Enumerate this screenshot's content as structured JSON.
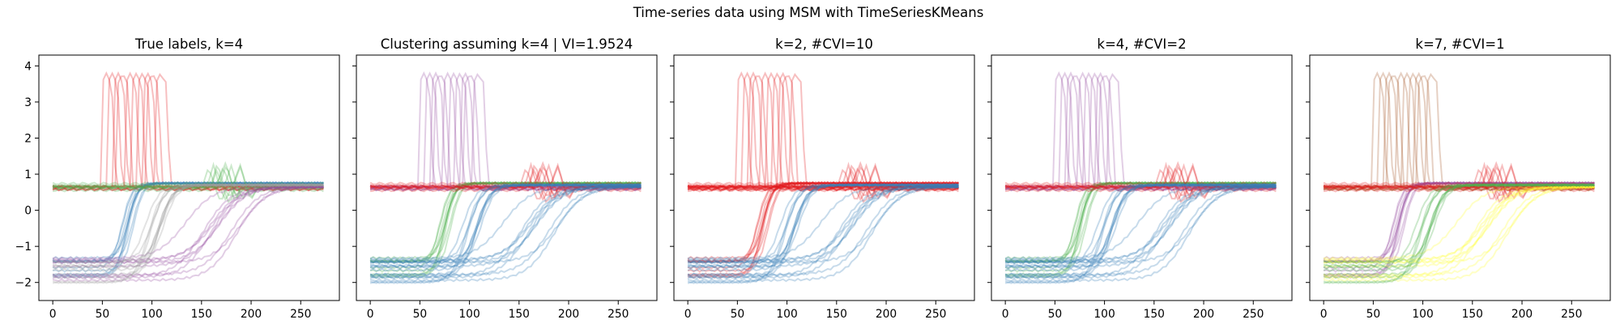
{
  "suptitle": "Time-series data using MSM with TimeSeriesKMeans",
  "palette": [
    "#e41a1c",
    "#377eb8",
    "#4daf4a",
    "#984ea3",
    "#ff7f00",
    "#ffff33",
    "#a65628",
    "#999999"
  ],
  "chart_data": [
    {
      "type": "line",
      "title": "True labels, k=4",
      "xlim": [
        -14,
        289
      ],
      "ylim": [
        -2.5,
        4.3
      ],
      "xticks": [
        0,
        50,
        100,
        150,
        200,
        250
      ],
      "yticks": [
        -2,
        -1,
        0,
        1,
        2,
        3,
        4
      ],
      "show_ytick_labels": true,
      "group_colors": [
        0,
        1,
        2,
        3,
        7
      ],
      "series_per_group": [
        10,
        10,
        10,
        10,
        10
      ]
    },
    {
      "type": "line",
      "title": "Clustering assuming k=4 | VI=1.9524",
      "xlim": [
        -14,
        289
      ],
      "ylim": [
        -2.5,
        4.3
      ],
      "xticks": [
        0,
        50,
        100,
        150,
        200,
        250
      ],
      "yticks": [
        -2,
        -1,
        0,
        1,
        2,
        3,
        4
      ],
      "show_ytick_labels": false,
      "group_colors": [
        3,
        2,
        0,
        1,
        1
      ],
      "series_per_group": [
        10,
        10,
        10,
        10,
        10
      ]
    },
    {
      "type": "line",
      "title": "k=2, #CVI=10",
      "xlim": [
        -14,
        289
      ],
      "ylim": [
        -2.5,
        4.3
      ],
      "xticks": [
        0,
        50,
        100,
        150,
        200,
        250
      ],
      "yticks": [
        -2,
        -1,
        0,
        1,
        2,
        3,
        4
      ],
      "show_ytick_labels": false,
      "group_colors": [
        0,
        0,
        0,
        1,
        1
      ],
      "series_per_group": [
        10,
        10,
        10,
        10,
        10
      ]
    },
    {
      "type": "line",
      "title": "k=4, #CVI=2",
      "xlim": [
        -14,
        289
      ],
      "ylim": [
        -2.5,
        4.3
      ],
      "xticks": [
        0,
        50,
        100,
        150,
        200,
        250
      ],
      "yticks": [
        -2,
        -1,
        0,
        1,
        2,
        3,
        4
      ],
      "show_ytick_labels": false,
      "group_colors": [
        3,
        2,
        0,
        1,
        1
      ],
      "series_per_group": [
        10,
        10,
        10,
        10,
        10
      ]
    },
    {
      "type": "line",
      "title": "k=7, #CVI=1",
      "xlim": [
        -14,
        289
      ],
      "ylim": [
        -2.5,
        4.3
      ],
      "xticks": [
        0,
        50,
        100,
        150,
        200,
        250
      ],
      "yticks": [
        -2,
        -1,
        0,
        1,
        2,
        3,
        4
      ],
      "show_ytick_labels": false,
      "group_colors": [
        6,
        3,
        0,
        5,
        2
      ],
      "series_per_group": [
        10,
        10,
        10,
        10,
        10
      ]
    }
  ]
}
